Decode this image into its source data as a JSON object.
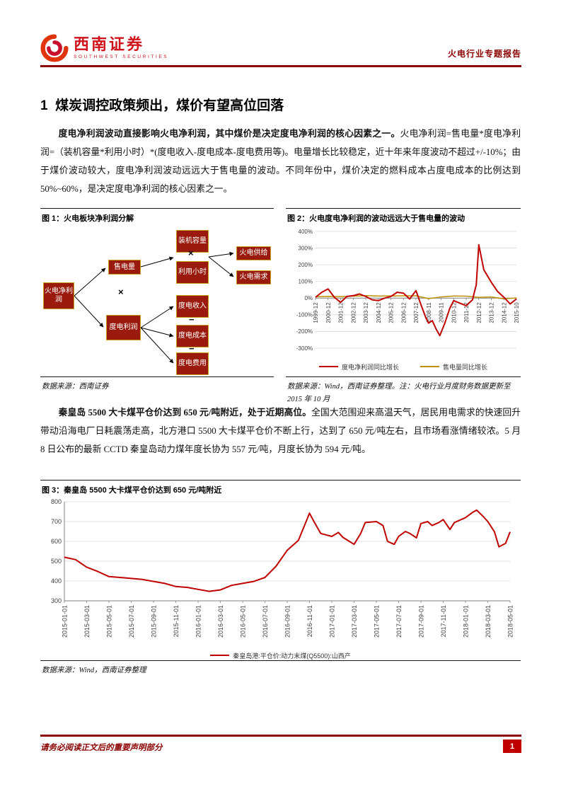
{
  "header": {
    "brand_cn": "西南证券",
    "brand_en": "SOUTHWEST SECURITIES",
    "report_type": "火电行业专题报告"
  },
  "section_title": "1  煤炭调控政策频出，煤价有望高位回落",
  "paragraph1": {
    "lead": "度电净利润波动直接影响火电净利润，其中煤价是决定度电净利润的核心因素之一。",
    "rest": "火电净利润=售电量*度电净利润=（装机容量*利用小时）*(度电收入-度电成本-度电费用等)。电量增长比较稳定，近十年来年度波动不超过+/-10%；由于煤价波动较大，度电净利润波动远远大于售电量的波动。不同年份中，煤价决定的燃料成本占度电成本的比例达到 50%~60%，是决定度电净利润的核心因素之一。"
  },
  "paragraph2": {
    "lead": "秦皇岛 5500 大卡煤平仓价达到 650 元/吨附近，处于近期高位。",
    "rest": "全国大范围迎来高温天气，居民用电需求的快速回升带动沿海电厂日耗震荡走高，北方港口 5500 大卡煤平仓价不断上行，达到了 650 元/吨左右，且市场看涨情绪较浓。5 月 8 日公布的最新 CCTD 秦皇岛动力煤年度长协为 557 元/吨，月度长协为 594 元/吨。"
  },
  "figure1": {
    "caption": "图 1：火电板块净利润分解",
    "source": "数据来源：西南证券",
    "op_times": "×",
    "op_minus": "−",
    "nodes": {
      "root": "火电净利润",
      "sales": "售电量",
      "unit_profit": "度电利润",
      "capacity": "装机容量",
      "hours": "利用小时",
      "supply": "火电供给",
      "demand": "火电需求",
      "revenue": "度电收入",
      "cost": "度电成本",
      "expense": "度电费用"
    },
    "box_fill": "#9a1b0e",
    "box_border": "#c9a227"
  },
  "figure2": {
    "caption": "图 2：火电度电净利润的波动远远大于售电量的波动",
    "source": "数据来源：Wind，西南证券整理。注：火电行业月度财务数据更新至 2015 年 10 月"
  },
  "figure3": {
    "caption": "图 3：秦皇岛 5500 大卡煤平仓价达到 650 元/吨附近",
    "source": "数据来源：Wind，西南证券整理"
  },
  "footer": {
    "disclaimer": "请务必阅读正文后的重要声明部分",
    "page_number": "1"
  },
  "colors": {
    "rule_maroon": "#8b0000",
    "brand_red": "#d0121b",
    "chart_red": "#c00000",
    "chart_gold": "#bf9000",
    "diagram_box": "#9a1b0e",
    "diagram_border": "#c9a227"
  },
  "chart_data": [
    {
      "type": "line",
      "title": "火电度电净利润的波动远远大于售电量的波动",
      "categories": [
        "1999-12",
        "2000-12",
        "2001-12",
        "2002-12",
        "2003-12",
        "2004-12",
        "2005-12",
        "2006-12",
        "2007-12",
        "2008-11",
        "2009-11",
        "2010-12",
        "2011-12",
        "2012-12",
        "2013-12",
        "2014-12",
        "2015-10"
      ],
      "ylim": [
        -300,
        400
      ],
      "ytick_step": 100,
      "y_format": "percent",
      "grid": true,
      "legend_position": "bottom",
      "series": [
        {
          "name": "度电净利润同比增长",
          "color": "#c00000",
          "width": 2,
          "points": [
            [
              0,
              5
            ],
            [
              0.5,
              35
            ],
            [
              1,
              55
            ],
            [
              1.5,
              5
            ],
            [
              2,
              -25
            ],
            [
              2.5,
              10
            ],
            [
              3,
              15
            ],
            [
              3.5,
              25
            ],
            [
              4,
              10
            ],
            [
              4.5,
              -10
            ],
            [
              5,
              -15
            ],
            [
              5.5,
              0
            ],
            [
              6,
              10
            ],
            [
              6.5,
              35
            ],
            [
              7,
              30
            ],
            [
              7.5,
              -5
            ],
            [
              8,
              45
            ],
            [
              8.4,
              -40
            ],
            [
              8.8,
              -120
            ],
            [
              9,
              -150
            ],
            [
              9.3,
              -135
            ],
            [
              9.6,
              -185
            ],
            [
              9.9,
              -225
            ],
            [
              10.3,
              -150
            ],
            [
              10.7,
              -60
            ],
            [
              11,
              -15
            ],
            [
              11.5,
              -30
            ],
            [
              12,
              -45
            ],
            [
              12.5,
              -10
            ],
            [
              12.8,
              80
            ],
            [
              13,
              320
            ],
            [
              13.4,
              170
            ],
            [
              14,
              95
            ],
            [
              14.5,
              40
            ],
            [
              15,
              5
            ],
            [
              15.5,
              -35
            ],
            [
              16,
              -5
            ]
          ]
        },
        {
          "name": "售电量同比增长",
          "color": "#bf9000",
          "width": 1.5,
          "points": [
            [
              0,
              8
            ],
            [
              1,
              10
            ],
            [
              2,
              9
            ],
            [
              3,
              12
            ],
            [
              4,
              15
            ],
            [
              5,
              13
            ],
            [
              6,
              13
            ],
            [
              7,
              14
            ],
            [
              8,
              14
            ],
            [
              9,
              -3
            ],
            [
              10,
              7
            ],
            [
              11,
              13
            ],
            [
              12,
              12
            ],
            [
              13,
              5
            ],
            [
              14,
              7
            ],
            [
              15,
              -4
            ],
            [
              16,
              1
            ]
          ]
        }
      ]
    },
    {
      "type": "line",
      "title": "秦皇岛 5500 大卡煤平仓价达到 650 元/吨附近",
      "categories": [
        "2015-01-01",
        "2015-03-01",
        "2015-05-01",
        "2015-07-01",
        "2015-09-01",
        "2015-11-01",
        "2016-01-01",
        "2016-03-01",
        "2016-05-01",
        "2016-07-01",
        "2016-09-01",
        "2016-11-01",
        "2017-01-01",
        "2017-03-01",
        "2017-05-01",
        "2017-07-01",
        "2017-09-01",
        "2017-11-01",
        "2018-01-01",
        "2018-03-01",
        "2018-05-01"
      ],
      "ylim": [
        300,
        800
      ],
      "ytick_step": 100,
      "y_format": "number",
      "grid": true,
      "legend_position": "bottom",
      "series": [
        {
          "name": "秦皇岛港:平仓价:动力末煤(Q5500):山西产",
          "color": "#c00000",
          "width": 2,
          "points": [
            [
              0,
              520
            ],
            [
              0.5,
              508
            ],
            [
              1,
              470
            ],
            [
              1.5,
              448
            ],
            [
              2,
              422
            ],
            [
              2.5,
              418
            ],
            [
              3,
              413
            ],
            [
              3.5,
              408
            ],
            [
              4,
              398
            ],
            [
              4.5,
              388
            ],
            [
              5,
              372
            ],
            [
              5.5,
              368
            ],
            [
              6,
              358
            ],
            [
              6.5,
              348
            ],
            [
              7,
              355
            ],
            [
              7.5,
              378
            ],
            [
              8,
              388
            ],
            [
              8.5,
              398
            ],
            [
              9,
              418
            ],
            [
              9.5,
              475
            ],
            [
              10,
              555
            ],
            [
              10.5,
              605
            ],
            [
              11,
              742
            ],
            [
              11.2,
              700
            ],
            [
              11.5,
              640
            ],
            [
              12,
              625
            ],
            [
              12.3,
              645
            ],
            [
              12.5,
              620
            ],
            [
              13,
              585
            ],
            [
              13.3,
              640
            ],
            [
              13.5,
              695
            ],
            [
              14,
              700
            ],
            [
              14.3,
              680
            ],
            [
              14.5,
              600
            ],
            [
              14.8,
              585
            ],
            [
              15,
              625
            ],
            [
              15.3,
              650
            ],
            [
              15.5,
              640
            ],
            [
              15.8,
              618
            ],
            [
              16,
              690
            ],
            [
              16.3,
              700
            ],
            [
              16.5,
              680
            ],
            [
              16.8,
              695
            ],
            [
              17,
              710
            ],
            [
              17.3,
              660
            ],
            [
              17.5,
              695
            ],
            [
              18,
              720
            ],
            [
              18.3,
              745
            ],
            [
              18.5,
              758
            ],
            [
              18.8,
              725
            ],
            [
              19,
              700
            ],
            [
              19.3,
              648
            ],
            [
              19.5,
              572
            ],
            [
              19.8,
              590
            ],
            [
              20,
              648
            ]
          ]
        }
      ]
    }
  ]
}
